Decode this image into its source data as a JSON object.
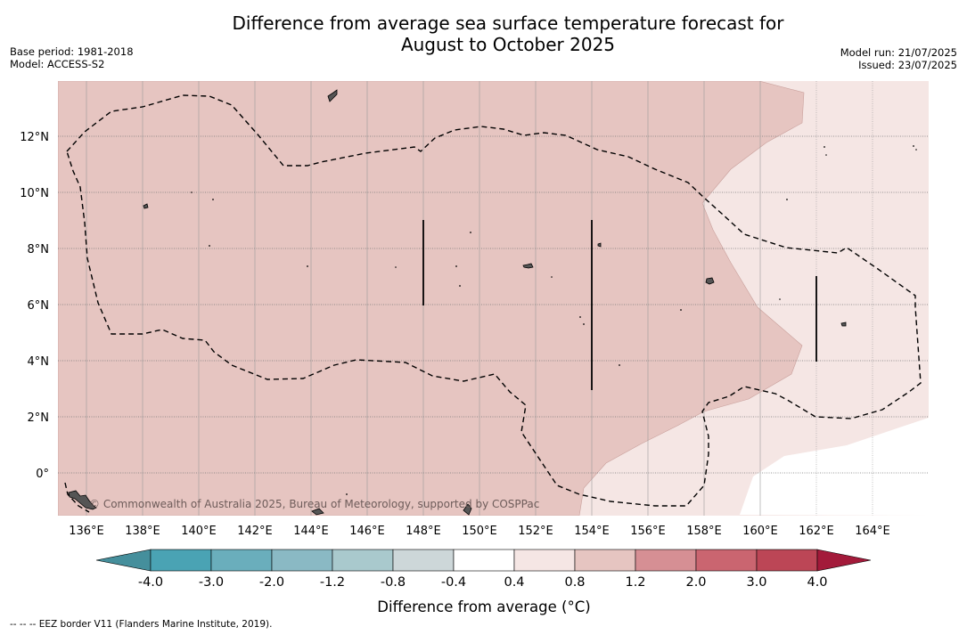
{
  "title_line1": "Difference from average sea surface temperature forecast for",
  "title_line2": "August to October 2025",
  "meta_left": {
    "base_period": "Base period: 1981-2018",
    "model": "Model: ACCESS-S2"
  },
  "meta_right": {
    "model_run": "Model run: 21/07/2025",
    "issued": "Issued: 23/07/2025"
  },
  "map": {
    "lon_ticks": [
      "136°E",
      "138°E",
      "140°E",
      "142°E",
      "144°E",
      "146°E",
      "148°E",
      "150°E",
      "152°E",
      "154°E",
      "156°E",
      "158°E",
      "160°E",
      "162°E",
      "164°E"
    ],
    "lat_ticks": [
      "12°N",
      "10°N",
      "8°N",
      "6°N",
      "4°N",
      "2°N",
      "0°"
    ],
    "watermark": "© Commonwealth of Australia 2025, Bureau of Meteorology, supported by COSPPac"
  },
  "colorbar": {
    "label": "Difference from average (°C)",
    "ticks": [
      "-4.0",
      "-3.0",
      "-2.0",
      "-1.2",
      "-0.8",
      "-0.4",
      "0.4",
      "0.8",
      "1.2",
      "2.0",
      "3.0",
      "4.0"
    ],
    "colors": [
      "#458f9c",
      "#4aa3b4",
      "#6aaebc",
      "#8ab9c4",
      "#a9c9cd",
      "#cdd7d9",
      "#ffffff",
      "#f5e6e4",
      "#e6c5c1",
      "#d68f94",
      "#ca6570",
      "#bc4656",
      "#a31a3a"
    ]
  },
  "footnote": "-- -- -- EEZ border V11 (Flanders Marine Institute, 2019)."
}
